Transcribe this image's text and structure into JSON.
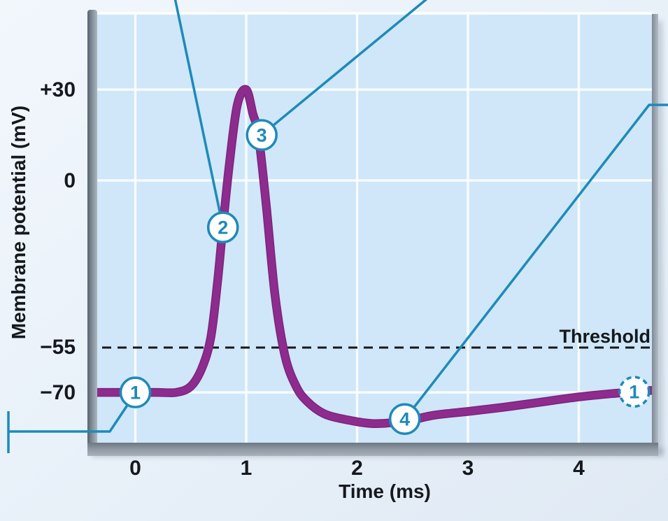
{
  "figure": {
    "description": "Action potential membrane potential vs time graph with numbered phase markers",
    "colors": {
      "curve": "#8e2c8e",
      "curve_edge": "#7a2380",
      "callout": "#1e8ab8",
      "plot_bg": "#cfe7f8",
      "outside_bg": "#e9f0f8",
      "grid": "#ffffff",
      "threshold_line": "#15181c",
      "axis_bar": "#8d98a2"
    }
  },
  "axis": {
    "x_title": "Time (ms)",
    "y_title": "Membrane potential (mV)",
    "x_ticks": [
      "0",
      "1",
      "2",
      "3",
      "4"
    ],
    "y_ticks": [
      {
        "label": "+30",
        "value": 30
      },
      {
        "label": "0",
        "value": 0
      },
      {
        "label": "−55",
        "value": -55
      },
      {
        "label": "−70",
        "value": -70
      }
    ]
  },
  "threshold": {
    "label": "Threshold",
    "value": -55
  },
  "chart_data": {
    "type": "line",
    "title": "",
    "xlabel": "Time (ms)",
    "ylabel": "Membrane potential (mV)",
    "xlim": [
      -0.34,
      4.66
    ],
    "ylim": [
      -86,
      55
    ],
    "x_ticks": [
      0,
      1,
      2,
      3,
      4
    ],
    "y_ticks": [
      30,
      0,
      -55,
      -70
    ],
    "grid": "white gridlines at labeled tick values only",
    "legend": "none",
    "series": [
      {
        "name": "membrane potential",
        "color": "#8e2c8e",
        "points": [
          [
            -0.34,
            -70
          ],
          [
            0.0,
            -70
          ],
          [
            0.2,
            -70
          ],
          [
            0.37,
            -70
          ],
          [
            0.5,
            -68
          ],
          [
            0.6,
            -62
          ],
          [
            0.68,
            -52
          ],
          [
            0.74,
            -34
          ],
          [
            0.79,
            -15
          ],
          [
            0.85,
            6
          ],
          [
            0.92,
            25
          ],
          [
            1.0,
            30
          ],
          [
            1.06,
            22
          ],
          [
            1.11,
            15
          ],
          [
            1.18,
            -8
          ],
          [
            1.26,
            -38
          ],
          [
            1.35,
            -58
          ],
          [
            1.45,
            -68
          ],
          [
            1.55,
            -73
          ],
          [
            1.7,
            -77
          ],
          [
            1.9,
            -79
          ],
          [
            2.15,
            -80.3
          ],
          [
            2.43,
            -79.5
          ],
          [
            2.7,
            -77.5
          ],
          [
            3.0,
            -76.3
          ],
          [
            3.3,
            -75
          ],
          [
            3.6,
            -73.5
          ],
          [
            4.0,
            -71.5
          ],
          [
            4.3,
            -70.4
          ],
          [
            4.5,
            -69.8
          ],
          [
            4.67,
            -69.3
          ]
        ]
      }
    ],
    "threshold_line": {
      "label": "Threshold",
      "mV": -55,
      "style": "black dashed"
    },
    "markers": [
      {
        "label": "1",
        "t": 0.0,
        "mV": -70,
        "style": "solid"
      },
      {
        "label": "2",
        "t": 0.79,
        "mV": -15.5,
        "style": "solid"
      },
      {
        "label": "3",
        "t": 1.14,
        "mV": 15,
        "style": "solid"
      },
      {
        "label": "4",
        "t": 2.43,
        "mV": -78.8,
        "style": "solid"
      },
      {
        "label": "1",
        "t": 4.5,
        "mV": -69.8,
        "style": "dashed"
      }
    ],
    "callouts": [
      "line from marker 1 to lower-left image edge",
      "line from marker 2 to top image edge",
      "line from marker 3 to top image edge",
      "line from marker 4 to right image edge"
    ]
  }
}
